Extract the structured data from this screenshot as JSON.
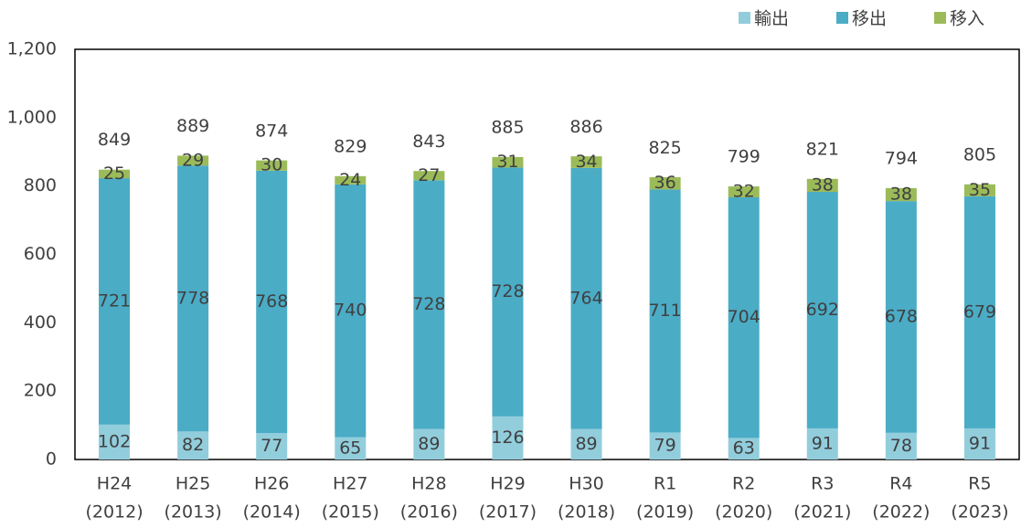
{
  "chart_data": {
    "type": "stacked_bar",
    "categories": [
      [
        "H24",
        "(2012)"
      ],
      [
        "H25",
        "(2013)"
      ],
      [
        "H26",
        "(2014)"
      ],
      [
        "H27",
        "(2015)"
      ],
      [
        "H28",
        "(2016)"
      ],
      [
        "H29",
        "(2017)"
      ],
      [
        "H30",
        "(2018)"
      ],
      [
        "R1",
        "(2019)"
      ],
      [
        "R2",
        "(2020)"
      ],
      [
        "R3",
        "(2021)"
      ],
      [
        "R4",
        "(2022)"
      ],
      [
        "R5",
        "(2023)"
      ]
    ],
    "series": [
      {
        "name": "輸出",
        "color": "#92cddc",
        "values": [
          102,
          82,
          77,
          65,
          89,
          126,
          89,
          79,
          63,
          91,
          78,
          91
        ]
      },
      {
        "name": "移出",
        "color": "#4bacc6",
        "values": [
          721,
          778,
          768,
          740,
          728,
          728,
          764,
          711,
          704,
          692,
          678,
          679
        ]
      },
      {
        "name": "移入",
        "color": "#9bbb59",
        "values": [
          25,
          29,
          30,
          24,
          27,
          31,
          34,
          36,
          32,
          38,
          38,
          35
        ]
      }
    ],
    "totals": [
      849,
      889,
      874,
      829,
      843,
      885,
      886,
      825,
      799,
      821,
      794,
      805
    ],
    "ylim": [
      0,
      1200
    ],
    "yticks": [
      0,
      200,
      400,
      600,
      800,
      {
        "value": 1000,
        "label": "1,000"
      },
      {
        "value": 1200,
        "label": "1,200"
      }
    ],
    "grid": false,
    "legend": "top-right"
  }
}
